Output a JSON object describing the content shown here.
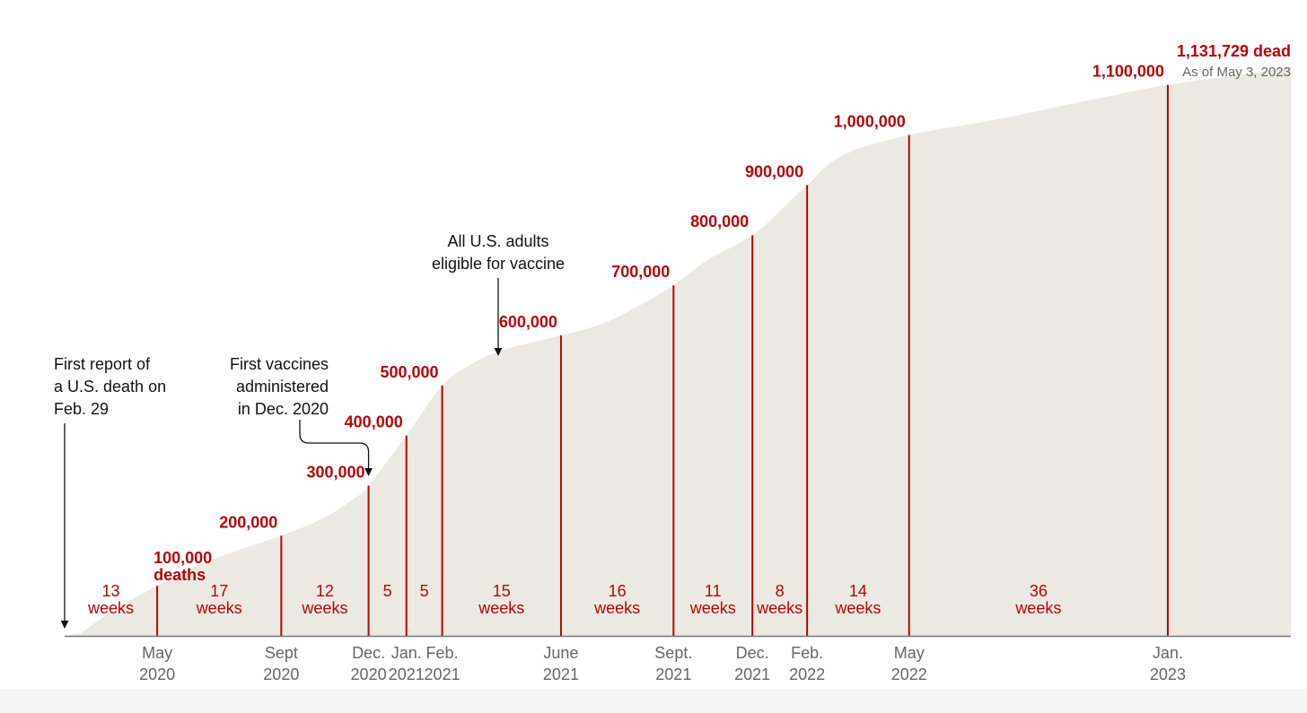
{
  "colors": {
    "area": "#ebe9e2",
    "accent": "#b5060b",
    "text": "#121212",
    "muted": "#666666",
    "axis": "#777777"
  },
  "chart_data": {
    "type": "area",
    "title": "",
    "xlabel": "",
    "ylabel": "",
    "grid": false,
    "xlim": [
      "2020-02-29",
      "2023-05-10"
    ],
    "ylim": [
      0,
      1180000
    ],
    "x_ticks": [
      {
        "date": "2020-05-27",
        "label": [
          "May",
          "2020"
        ]
      },
      {
        "date": "2020-09-22",
        "label": [
          "Sept",
          "2020"
        ]
      },
      {
        "date": "2020-12-14",
        "label": [
          "Dec.",
          "2020"
        ]
      },
      {
        "date": "2021-01-19",
        "label": [
          "Jan.",
          "2021"
        ]
      },
      {
        "date": "2021-02-22",
        "label": [
          "Feb.",
          "2021"
        ]
      },
      {
        "date": "2021-06-15",
        "label": [
          "June",
          "2021"
        ]
      },
      {
        "date": "2021-09-30",
        "label": [
          "Sept.",
          "2021"
        ]
      },
      {
        "date": "2021-12-14",
        "label": [
          "Dec.",
          "2021"
        ]
      },
      {
        "date": "2022-02-04",
        "label": [
          "Feb.",
          "2022"
        ]
      },
      {
        "date": "2022-05-12",
        "label": [
          "May",
          "2022"
        ]
      },
      {
        "date": "2023-01-13",
        "label": [
          "Jan.",
          "2023"
        ]
      }
    ],
    "series": [
      {
        "x": [
          "2020-03-15",
          "2020-04-15",
          "2020-05-27",
          "2020-07-15",
          "2020-09-22",
          "2020-11-01",
          "2020-12-01",
          "2020-12-14",
          "2021-01-19",
          "2021-02-22",
          "2021-03-20",
          "2021-04-20",
          "2021-06-15",
          "2021-07-20",
          "2021-08-20",
          "2021-09-30",
          "2021-11-01",
          "2021-12-14",
          "2022-01-10",
          "2022-02-04",
          "2022-03-10",
          "2022-05-12",
          "2022-08-01",
          "2022-11-01",
          "2023-01-13",
          "2023-05-03"
        ],
        "y": [
          5000,
          50000,
          100000,
          150000,
          200000,
          235000,
          275000,
          300000,
          400000,
          500000,
          540000,
          570000,
          600000,
          620000,
          650000,
          700000,
          750000,
          800000,
          850000,
          900000,
          960000,
          1000000,
          1030000,
          1070000,
          1100000,
          1131729
        ]
      }
    ],
    "milestones": [
      {
        "date": "2020-05-27",
        "value": 100000,
        "label": "100,000",
        "sublabel": "deaths"
      },
      {
        "date": "2020-09-22",
        "value": 200000,
        "label": "200,000"
      },
      {
        "date": "2020-12-14",
        "value": 300000,
        "label": "300,000"
      },
      {
        "date": "2021-01-19",
        "value": 400000,
        "label": "400,000"
      },
      {
        "date": "2021-02-22",
        "value": 500000,
        "label": "500,000"
      },
      {
        "date": "2021-06-15",
        "value": 600000,
        "label": "600,000"
      },
      {
        "date": "2021-09-30",
        "value": 700000,
        "label": "700,000"
      },
      {
        "date": "2021-12-14",
        "value": 800000,
        "label": "800,000"
      },
      {
        "date": "2022-02-04",
        "value": 900000,
        "label": "900,000"
      },
      {
        "date": "2022-05-12",
        "value": 1000000,
        "label": "1,000,000"
      },
      {
        "date": "2023-01-13",
        "value": 1100000,
        "label": "1,100,000"
      }
    ],
    "intervals": [
      {
        "from": "2020-02-29",
        "to": "2020-05-27",
        "weeks": "13",
        "unit": "weeks"
      },
      {
        "from": "2020-05-27",
        "to": "2020-09-22",
        "weeks": "17",
        "unit": "weeks"
      },
      {
        "from": "2020-09-22",
        "to": "2020-12-14",
        "weeks": "12",
        "unit": "weeks"
      },
      {
        "from": "2020-12-14",
        "to": "2021-01-19",
        "weeks": "5",
        "unit": ""
      },
      {
        "from": "2021-01-19",
        "to": "2021-02-22",
        "weeks": "5",
        "unit": ""
      },
      {
        "from": "2021-02-22",
        "to": "2021-06-15",
        "weeks": "15",
        "unit": "weeks"
      },
      {
        "from": "2021-06-15",
        "to": "2021-09-30",
        "weeks": "16",
        "unit": "weeks"
      },
      {
        "from": "2021-09-30",
        "to": "2021-12-14",
        "weeks": "11",
        "unit": "weeks"
      },
      {
        "from": "2021-12-14",
        "to": "2022-02-04",
        "weeks": "8",
        "unit": "weeks"
      },
      {
        "from": "2022-02-04",
        "to": "2022-05-12",
        "weeks": "14",
        "unit": "weeks"
      },
      {
        "from": "2022-05-12",
        "to": "2023-01-13",
        "weeks": "36",
        "unit": "weeks"
      }
    ],
    "total": {
      "label": "1,131,729 dead",
      "sublabel": "As of May 3, 2023"
    },
    "annotations": [
      {
        "id": "first-death",
        "lines": [
          "First report of",
          "a U.S. death on",
          "Feb. 29"
        ],
        "target_date": "2020-02-29",
        "target_value": 0
      },
      {
        "id": "first-vaccines",
        "lines": [
          "First vaccines",
          "administered",
          "in Dec. 2020"
        ],
        "target_date": "2020-12-14",
        "target_value": 300000
      },
      {
        "id": "adults-eligible",
        "lines": [
          "All U.S. adults",
          "eligible for vaccine"
        ],
        "target_date": "2021-04-19",
        "target_value": 570000
      }
    ]
  }
}
